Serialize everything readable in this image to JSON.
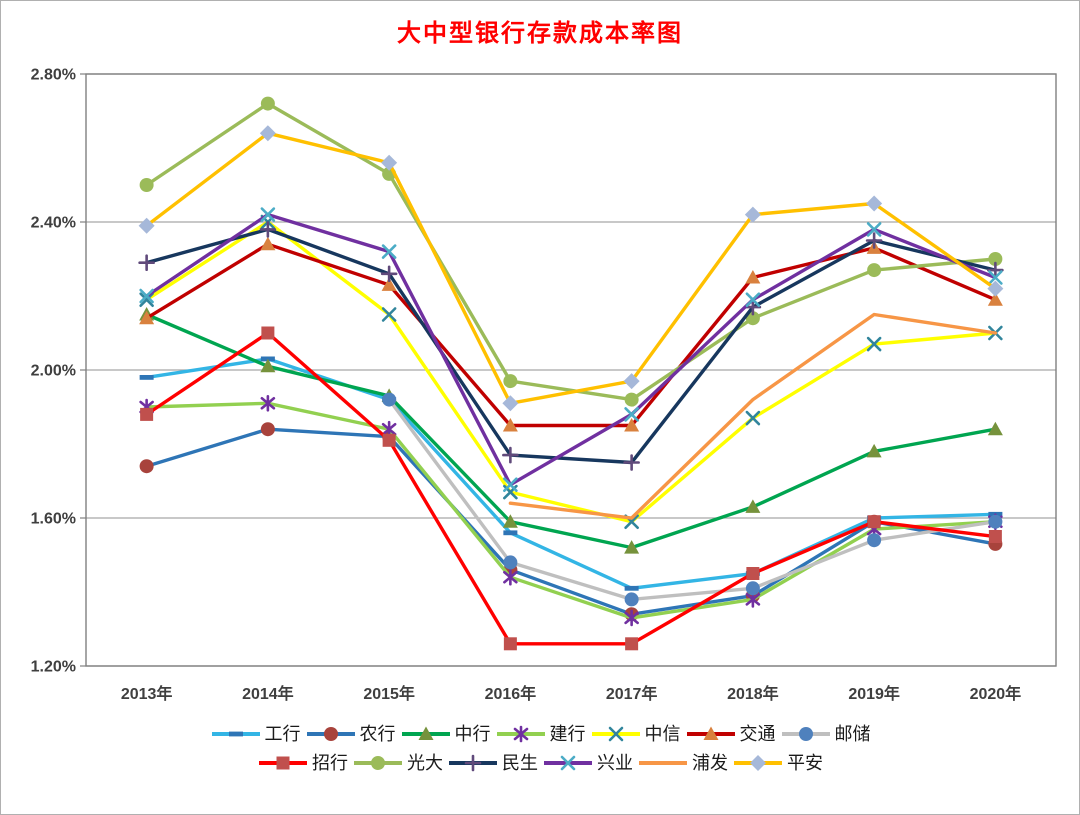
{
  "title": "大中型银行存款成本率图",
  "title_color": "#FF0000",
  "chart_data": {
    "type": "line",
    "title": "大中型银行存款成本率图",
    "categories": [
      "2013年",
      "2014年",
      "2015年",
      "2016年",
      "2017年",
      "2018年",
      "2019年",
      "2020年"
    ],
    "xlabel": "",
    "ylabel": "",
    "y_ticks": [
      "2.80%",
      "2.40%",
      "2.00%",
      "1.60%",
      "1.20%"
    ],
    "ylim": [
      1.2,
      2.8
    ],
    "y_step": 0.4,
    "grid": true,
    "legend_position": "bottom",
    "legend_rows": [
      7,
      6
    ],
    "series": [
      {
        "name": "工行",
        "line_color": "#33B5E5",
        "marker": "dash",
        "marker_color": "#2E75B6",
        "values": [
          1.98,
          2.03,
          1.92,
          1.56,
          1.41,
          1.45,
          1.6,
          1.61
        ]
      },
      {
        "name": "农行",
        "line_color": "#2E75B6",
        "marker": "circle",
        "marker_color": "#A8433C",
        "values": [
          1.74,
          1.84,
          1.82,
          1.46,
          1.34,
          1.39,
          1.59,
          1.53
        ]
      },
      {
        "name": "中行",
        "line_color": "#00A550",
        "marker": "triangle",
        "marker_color": "#76923C",
        "values": [
          2.15,
          2.01,
          1.93,
          1.59,
          1.52,
          1.63,
          1.78,
          1.84
        ]
      },
      {
        "name": "建行",
        "line_color": "#92D050",
        "marker": "asterisk",
        "marker_color": "#7030A0",
        "values": [
          1.9,
          1.91,
          1.84,
          1.44,
          1.33,
          1.38,
          1.57,
          1.59
        ]
      },
      {
        "name": "中信",
        "line_color": "#FFFF00",
        "marker": "x",
        "marker_color": "#31859C",
        "values": [
          2.19,
          2.4,
          2.15,
          1.67,
          1.59,
          1.87,
          2.07,
          2.1
        ]
      },
      {
        "name": "交通",
        "line_color": "#C00000",
        "marker": "triangle",
        "marker_color": "#D9813E",
        "values": [
          2.14,
          2.34,
          2.23,
          1.85,
          1.85,
          2.25,
          2.33,
          2.19
        ]
      },
      {
        "name": "邮储",
        "line_color": "#BFBFBF",
        "marker": "circle",
        "marker_color": "#4F81BD",
        "values": [
          null,
          null,
          1.92,
          1.48,
          1.38,
          1.41,
          1.54,
          1.59
        ]
      },
      {
        "name": "招行",
        "line_color": "#FF0000",
        "marker": "square",
        "marker_color": "#C0504D",
        "values": [
          1.88,
          2.1,
          1.81,
          1.26,
          1.26,
          1.45,
          1.59,
          1.55
        ]
      },
      {
        "name": "光大",
        "line_color": "#9BBB59",
        "marker": "circle",
        "marker_color": "#9BBB59",
        "values": [
          2.5,
          2.72,
          2.53,
          1.97,
          1.92,
          2.14,
          2.27,
          2.3
        ]
      },
      {
        "name": "民生",
        "line_color": "#17375E",
        "marker": "plus",
        "marker_color": "#604A7B",
        "values": [
          2.29,
          2.38,
          2.26,
          1.77,
          1.75,
          2.17,
          2.35,
          2.27
        ]
      },
      {
        "name": "兴业",
        "line_color": "#7030A0",
        "marker": "x",
        "marker_color": "#4BACC6",
        "values": [
          2.2,
          2.42,
          2.32,
          1.69,
          1.88,
          2.19,
          2.38,
          2.25
        ]
      },
      {
        "name": "浦发",
        "line_color": "#F79646",
        "marker": "none",
        "marker_color": "#F79646",
        "values": [
          null,
          null,
          null,
          1.64,
          1.6,
          1.92,
          2.15,
          2.1
        ]
      },
      {
        "name": "平安",
        "line_color": "#FFC000",
        "marker": "diamond",
        "marker_color": "#A6B8D9",
        "values": [
          2.39,
          2.64,
          2.56,
          1.91,
          1.97,
          2.42,
          2.45,
          2.22
        ]
      }
    ]
  }
}
